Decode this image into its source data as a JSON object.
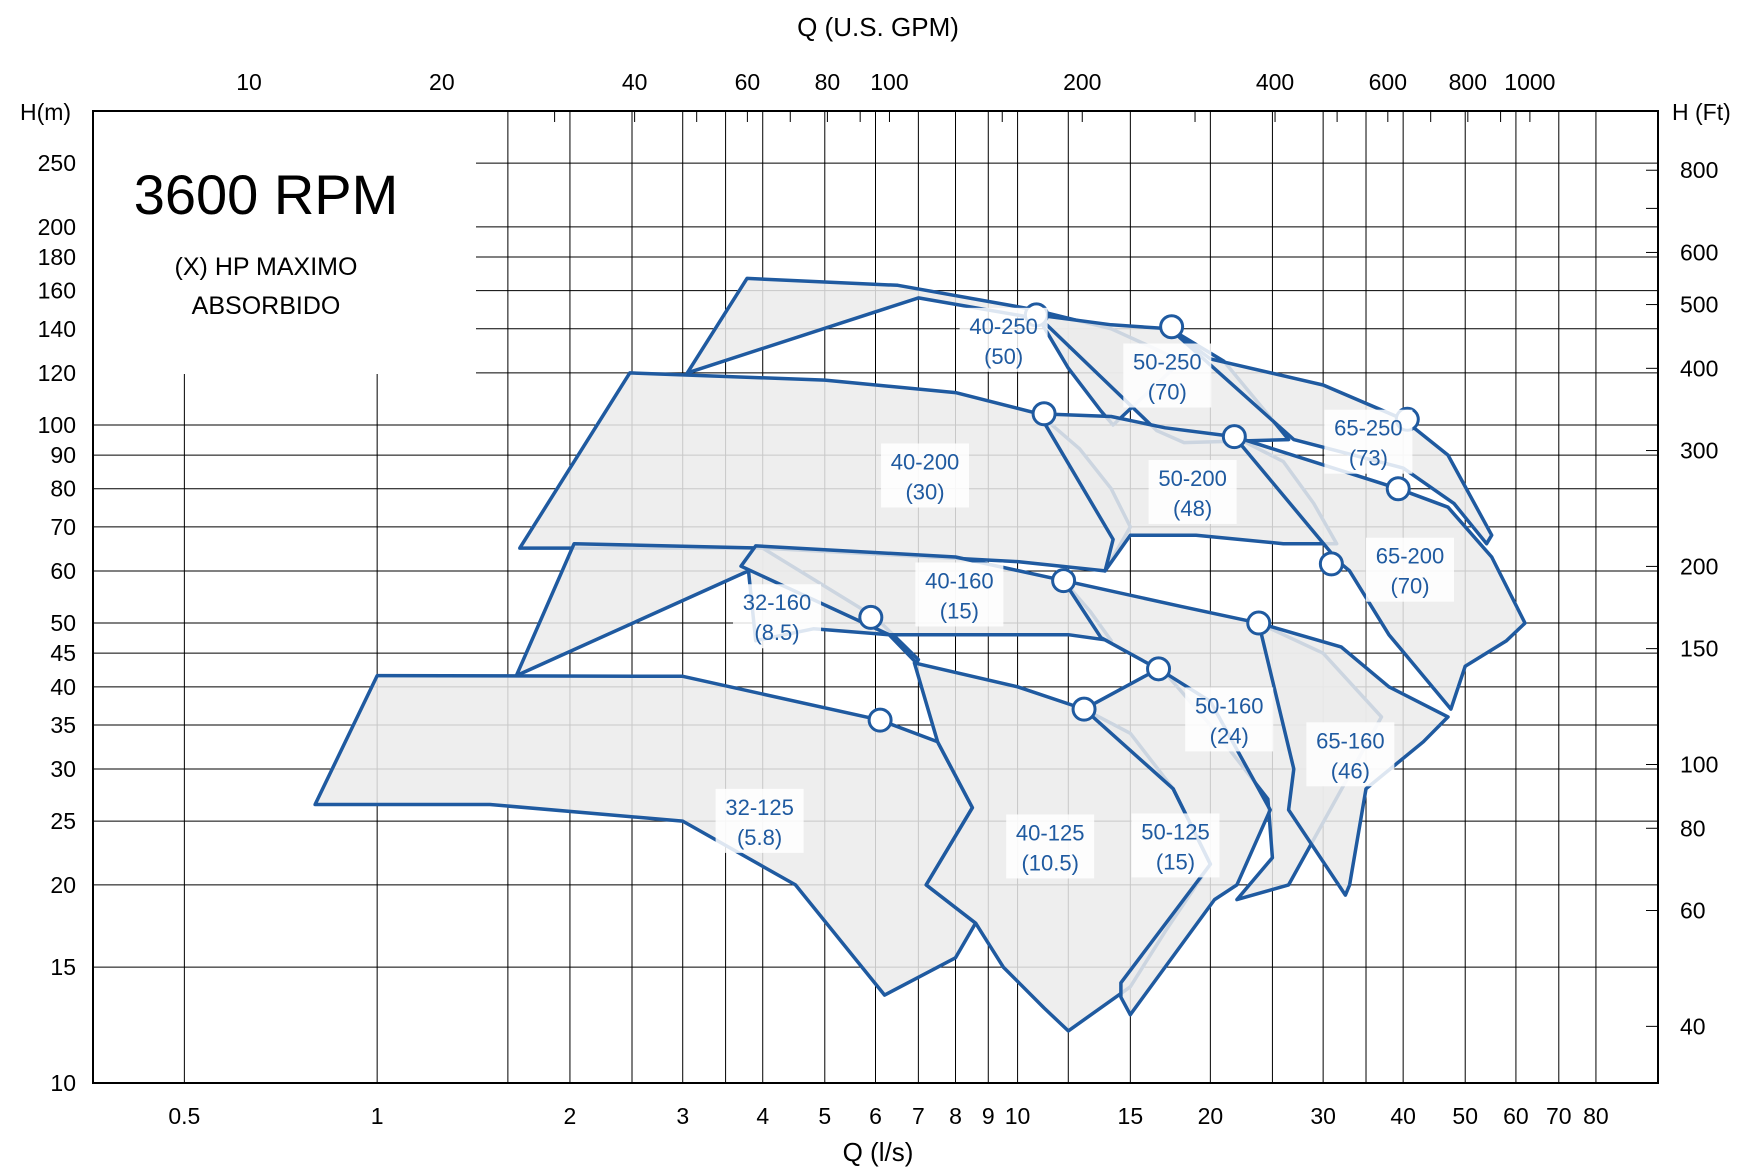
{
  "chart_data": {
    "type": "line",
    "title": "3600 RPM",
    "note": [
      "(X)  HP MAXIMO",
      "ABSORBIDO"
    ],
    "xlabel": "Q  (l/s)",
    "x2label": "Q  (U.S. GPM)",
    "ylabel": "H(m)",
    "y2label": "H  (Ft)",
    "scale": "log-log",
    "xlim": [
      0.36,
      100
    ],
    "ylim": [
      10,
      300
    ],
    "grid": true,
    "x_ticks": [
      {
        "v": 0.5,
        "t": "0.5"
      },
      {
        "v": 1,
        "t": "1"
      },
      {
        "v": 2,
        "t": "2"
      },
      {
        "v": 3,
        "t": "3"
      },
      {
        "v": 4,
        "t": "4"
      },
      {
        "v": 5,
        "t": "5"
      },
      {
        "v": 6,
        "t": "6"
      },
      {
        "v": 7,
        "t": "7"
      },
      {
        "v": 8,
        "t": "8"
      },
      {
        "v": 9,
        "t": "9"
      },
      {
        "v": 10,
        "t": "10"
      },
      {
        "v": 15,
        "t": "15"
      },
      {
        "v": 20,
        "t": "20"
      },
      {
        "v": 30,
        "t": "30"
      },
      {
        "v": 40,
        "t": "40"
      },
      {
        "v": 50,
        "t": "50"
      },
      {
        "v": 60,
        "t": "60"
      },
      {
        "v": 70,
        "t": "70"
      },
      {
        "v": 80,
        "t": "80"
      }
    ],
    "x_grid": [
      0.5,
      1,
      1.6,
      2,
      2.5,
      3,
      3.5,
      4,
      5,
      6,
      7,
      8,
      9,
      10,
      12,
      15,
      20,
      25,
      30,
      35,
      40,
      50,
      60,
      70,
      80
    ],
    "x2_ticks": [
      {
        "v": 10,
        "t": "10"
      },
      {
        "v": 20,
        "t": "20"
      },
      {
        "v": 40,
        "t": "40"
      },
      {
        "v": 60,
        "t": "60"
      },
      {
        "v": 80,
        "t": "80"
      },
      {
        "v": 100,
        "t": "100"
      },
      {
        "v": 200,
        "t": "200"
      },
      {
        "v": 400,
        "t": "400"
      },
      {
        "v": 600,
        "t": "600"
      },
      {
        "v": 800,
        "t": "800"
      },
      {
        "v": 1000,
        "t": "1000"
      }
    ],
    "x2_minor": [
      30,
      50,
      70,
      90,
      150,
      300,
      500,
      700,
      900
    ],
    "y_ticks": [
      {
        "v": 10,
        "t": "10"
      },
      {
        "v": 15,
        "t": "15"
      },
      {
        "v": 20,
        "t": "20"
      },
      {
        "v": 25,
        "t": "25"
      },
      {
        "v": 30,
        "t": "30"
      },
      {
        "v": 35,
        "t": "35"
      },
      {
        "v": 40,
        "t": "40"
      },
      {
        "v": 45,
        "t": "45"
      },
      {
        "v": 50,
        "t": "50"
      },
      {
        "v": 60,
        "t": "60"
      },
      {
        "v": 70,
        "t": "70"
      },
      {
        "v": 80,
        "t": "80"
      },
      {
        "v": 90,
        "t": "90"
      },
      {
        "v": 100,
        "t": "100"
      },
      {
        "v": 120,
        "t": "120"
      },
      {
        "v": 140,
        "t": "140"
      },
      {
        "v": 160,
        "t": "160"
      },
      {
        "v": 180,
        "t": "180"
      },
      {
        "v": 200,
        "t": "200"
      },
      {
        "v": 250,
        "t": "250"
      }
    ],
    "y2_ticks": [
      {
        "v": 40,
        "t": "40"
      },
      {
        "v": 60,
        "t": "60"
      },
      {
        "v": 80,
        "t": "80"
      },
      {
        "v": 100,
        "t": "100"
      },
      {
        "v": 150,
        "t": "150"
      },
      {
        "v": 200,
        "t": "200"
      },
      {
        "v": 300,
        "t": "300"
      },
      {
        "v": 400,
        "t": "400"
      },
      {
        "v": 500,
        "t": "500"
      },
      {
        "v": 600,
        "t": "600"
      },
      {
        "v": 800,
        "t": "800"
      }
    ],
    "y2_minor": [
      700
    ],
    "series": [
      {
        "name": "40-250",
        "label": [
          "40-250",
          "(50)"
        ],
        "outline": [
          [
            3.78,
            167
          ],
          [
            6.5,
            163
          ],
          [
            10.5,
            150
          ],
          [
            14,
            140
          ],
          [
            16,
            132
          ],
          [
            18,
            125
          ],
          [
            14.1,
            100
          ],
          [
            13.5,
            105
          ],
          [
            12,
            122
          ],
          [
            10.8,
            145
          ],
          [
            7,
            156
          ],
          [
            3.05,
            120
          ]
        ],
        "bep": [
          10.7,
          147
        ]
      },
      {
        "name": "50-250",
        "label": [
          "50-250",
          "(70)"
        ],
        "outline": [
          [
            10.7,
            147
          ],
          [
            14,
            142
          ],
          [
            17.3,
            140
          ],
          [
            21,
            125
          ],
          [
            26.5,
            95
          ],
          [
            18.2,
            94
          ],
          [
            16.5,
            98
          ]
        ],
        "bep": [
          17.4,
          141
        ]
      },
      {
        "name": "65-250",
        "label": [
          "65-250",
          "(73)"
        ],
        "outline": [
          [
            17.3,
            140
          ],
          [
            20,
            126
          ],
          [
            30,
            115
          ],
          [
            40,
            102
          ],
          [
            47,
            90
          ],
          [
            55,
            68
          ],
          [
            54,
            66
          ],
          [
            48,
            76
          ],
          [
            40,
            86
          ],
          [
            27,
            95
          ]
        ],
        "bep": [
          40.6,
          102
        ]
      },
      {
        "name": "40-200",
        "label": [
          "40-200",
          "(30)"
        ],
        "outline": [
          [
            2.48,
            120
          ],
          [
            5,
            117
          ],
          [
            8,
            112
          ],
          [
            10.8,
            104
          ],
          [
            12.5,
            92
          ],
          [
            14,
            80
          ],
          [
            15,
            70
          ],
          [
            13.7,
            60
          ],
          [
            10,
            62
          ],
          [
            4,
            65
          ],
          [
            1.67,
            65
          ]
        ],
        "bep": [
          11,
          104
        ]
      },
      {
        "name": "50-200",
        "label": [
          "50-200",
          "(48)"
        ],
        "outline": [
          [
            10.8,
            104
          ],
          [
            14,
            103
          ],
          [
            17,
            99
          ],
          [
            21.8,
            96
          ],
          [
            26,
            88
          ],
          [
            29,
            76
          ],
          [
            31.5,
            66
          ],
          [
            26,
            66
          ],
          [
            19,
            68
          ],
          [
            15,
            68
          ],
          [
            13.7,
            60
          ],
          [
            14.1,
            67
          ]
        ],
        "bep": [
          21.8,
          96
        ]
      },
      {
        "name": "65-200",
        "label": [
          "65-200",
          "(70)"
        ],
        "outline": [
          [
            21.8,
            96
          ],
          [
            30,
            87
          ],
          [
            39.3,
            80
          ],
          [
            47,
            75
          ],
          [
            55,
            63
          ],
          [
            62,
            50
          ],
          [
            58,
            47
          ],
          [
            50,
            43
          ],
          [
            47.5,
            37
          ],
          [
            38,
            48
          ],
          [
            33,
            60
          ],
          [
            31.7,
            62
          ]
        ],
        "bep": [
          39.3,
          80
        ]
      },
      {
        "name": "32-160",
        "label": [
          "32-160",
          "(8.5)"
        ],
        "outline": [
          [
            2.03,
            66
          ],
          [
            4,
            65
          ],
          [
            6,
            51
          ],
          [
            7,
            44
          ],
          [
            6.95,
            43.5
          ],
          [
            6.3,
            48
          ],
          [
            4.8,
            49
          ],
          [
            3.9,
            47
          ],
          [
            3.8,
            60
          ],
          [
            1.65,
            41.6
          ]
        ],
        "bep": [
          5.9,
          51
        ]
      },
      {
        "name": "40-160",
        "label": [
          "40-160",
          "(15)"
        ],
        "outline": [
          [
            3.9,
            65.5
          ],
          [
            8,
            63
          ],
          [
            11.8,
            58
          ],
          [
            13,
            52
          ],
          [
            14,
            47
          ],
          [
            12,
            48
          ],
          [
            6.3,
            48
          ],
          [
            3.7,
            61
          ]
        ],
        "bep": [
          11.8,
          58
        ]
      },
      {
        "name": "50-160",
        "label": [
          "50-160",
          "(24)"
        ],
        "outline": [
          [
            11.8,
            58
          ],
          [
            18,
            53
          ],
          [
            23.8,
            50
          ],
          [
            30,
            45
          ],
          [
            37,
            36
          ],
          [
            26.5,
            20
          ],
          [
            22,
            19
          ],
          [
            25,
            22
          ],
          [
            24.6,
            27
          ],
          [
            20,
            35
          ],
          [
            17,
            42
          ],
          [
            13.5,
            47.5
          ]
        ],
        "bep": [
          23.8,
          50
        ]
      },
      {
        "name": "65-160",
        "label": [
          "65-160",
          "(46)"
        ],
        "outline": [
          [
            23.8,
            50
          ],
          [
            32,
            46
          ],
          [
            38,
            40
          ],
          [
            47,
            36
          ],
          [
            43,
            33
          ],
          [
            35,
            28
          ],
          [
            33,
            20
          ],
          [
            32.5,
            19.3
          ],
          [
            26.5,
            26
          ],
          [
            27,
            30
          ]
        ],
        "bep": [
          30.9,
          61.5
        ]
      },
      {
        "name": "32-125",
        "label": [
          "32-125",
          "(5.8)"
        ],
        "outline": [
          [
            1.0,
            41.6
          ],
          [
            3,
            41.5
          ],
          [
            6.1,
            35.6
          ],
          [
            7.5,
            33
          ],
          [
            8.5,
            26.2
          ],
          [
            7.2,
            20
          ],
          [
            8.6,
            17.5
          ],
          [
            8,
            15.5
          ],
          [
            6.2,
            13.6
          ],
          [
            4.5,
            20
          ],
          [
            3,
            25
          ],
          [
            1.5,
            26.5
          ],
          [
            0.8,
            26.5
          ]
        ],
        "bep": [
          6.1,
          35.6
        ]
      },
      {
        "name": "40-125",
        "label": [
          "40-125",
          "(10.5)"
        ],
        "outline": [
          [
            6.9,
            43.5
          ],
          [
            10,
            40
          ],
          [
            12.7,
            37
          ],
          [
            15,
            34
          ],
          [
            17.5,
            28
          ],
          [
            20,
            21.5
          ],
          [
            17,
            17
          ],
          [
            15,
            14
          ],
          [
            12,
            12
          ],
          [
            11,
            13
          ],
          [
            9.5,
            15
          ],
          [
            8.6,
            17.5
          ],
          [
            7.2,
            20
          ],
          [
            8.5,
            26.2
          ],
          [
            7.5,
            33
          ]
        ],
        "bep": [
          12.7,
          37
        ]
      },
      {
        "name": "50-125",
        "label": [
          "50-125",
          "(15)"
        ],
        "outline": [
          [
            12.7,
            37
          ],
          [
            16.6,
            42.6
          ],
          [
            20,
            38
          ],
          [
            24.8,
            26
          ],
          [
            22,
            20
          ],
          [
            20.3,
            19
          ],
          [
            15,
            12.7
          ],
          [
            14.5,
            13.5
          ],
          [
            14.5,
            14.2
          ],
          [
            20,
            21.5
          ],
          [
            17.5,
            28
          ]
        ],
        "bep": [
          16.6,
          42.6
        ]
      }
    ]
  }
}
